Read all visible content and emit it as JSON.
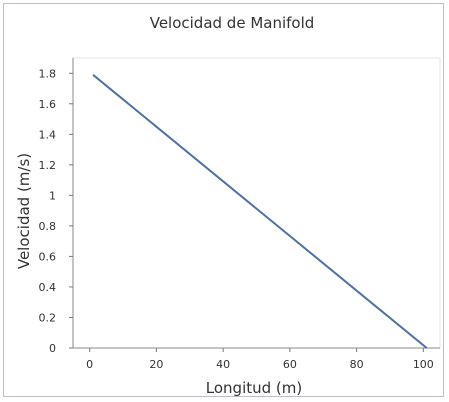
{
  "chart_data": {
    "type": "line",
    "title": "Velocidad de Manifold",
    "xlabel": "Longitud (m)",
    "ylabel": "Velocidad (m/s)",
    "xlim": [
      -5,
      105
    ],
    "ylim": [
      0,
      1.9
    ],
    "x_ticks": [
      "0",
      "20",
      "40",
      "60",
      "80",
      "100"
    ],
    "y_ticks": [
      "0",
      "0.2",
      "0.4",
      "0.6",
      "0.8",
      "1",
      "1.2",
      "1.4",
      "1.6",
      "1.8"
    ],
    "grid": true,
    "legend": "none",
    "series": [
      {
        "x": [
          1,
          101
        ],
        "y": [
          1.79,
          0.0
        ],
        "color": "#4f6fa8"
      }
    ]
  }
}
